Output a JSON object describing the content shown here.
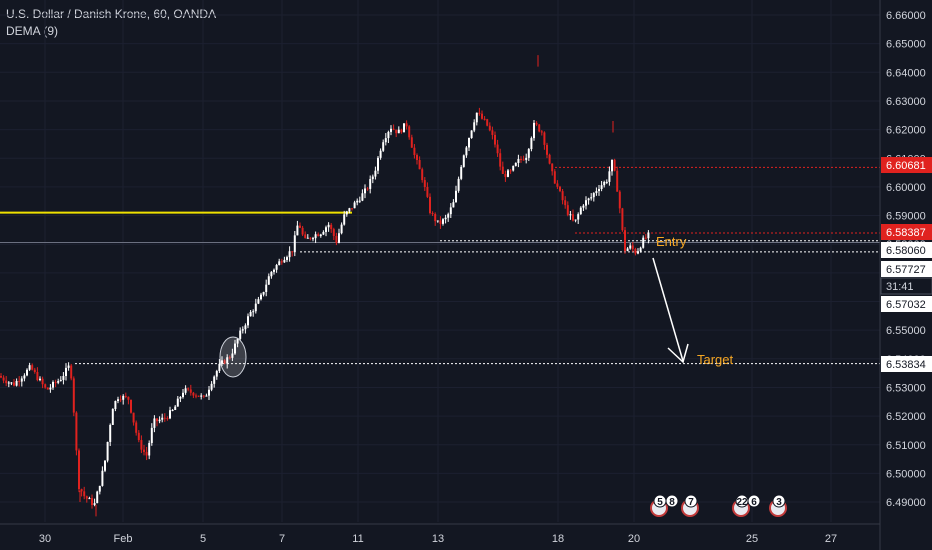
{
  "legend": {
    "title": "U.S. Dollar / Danish Krone, 60, OANDA",
    "indicator": "DEMA (9)"
  },
  "colors": {
    "bg": "#131722",
    "up": "#ffffff",
    "down": "#e0221f",
    "text": "#d1d4dc",
    "yellow": "#f0e100",
    "red": "#e0221f",
    "orange": "#f5a623"
  },
  "chart_data": {
    "type": "candlestick",
    "ylim": [
      6.485,
      6.665
    ],
    "y_ticks": [
      "6.66000",
      "6.65000",
      "6.64000",
      "6.63000",
      "6.62000",
      "6.61000",
      "6.60000",
      "6.59000",
      "6.58000",
      "6.57000",
      "6.56000",
      "6.55000",
      "6.54000",
      "6.53000",
      "6.52000",
      "6.51000",
      "6.50000",
      "6.49000"
    ],
    "x_labels": [
      "30",
      "Feb",
      "5",
      "7",
      "11",
      "13",
      "18",
      "20",
      "25",
      "27"
    ],
    "price_path": [
      [
        0,
        6.534
      ],
      [
        15,
        6.531
      ],
      [
        32,
        6.537
      ],
      [
        48,
        6.529
      ],
      [
        62,
        6.533
      ],
      [
        72,
        6.538
      ],
      [
        76,
        6.519
      ],
      [
        80,
        6.496
      ],
      [
        86,
        6.492
      ],
      [
        96,
        6.489
      ],
      [
        106,
        6.503
      ],
      [
        114,
        6.523
      ],
      [
        120,
        6.527
      ],
      [
        130,
        6.526
      ],
      [
        140,
        6.511
      ],
      [
        148,
        6.506
      ],
      [
        155,
        6.518
      ],
      [
        165,
        6.519
      ],
      [
        175,
        6.522
      ],
      [
        185,
        6.529
      ],
      [
        196,
        6.528
      ],
      [
        206,
        6.526
      ],
      [
        214,
        6.533
      ],
      [
        222,
        6.538
      ],
      [
        232,
        6.541
      ],
      [
        242,
        6.549
      ],
      [
        252,
        6.556
      ],
      [
        262,
        6.561
      ],
      [
        272,
        6.57
      ],
      [
        284,
        6.575
      ],
      [
        294,
        6.578
      ],
      [
        300,
        6.588
      ],
      [
        306,
        6.581
      ],
      [
        314,
        6.583
      ],
      [
        322,
        6.584
      ],
      [
        330,
        6.587
      ],
      [
        338,
        6.581
      ],
      [
        346,
        6.59
      ],
      [
        356,
        6.594
      ],
      [
        368,
        6.599
      ],
      [
        376,
        6.605
      ],
      [
        384,
        6.616
      ],
      [
        392,
        6.621
      ],
      [
        400,
        6.619
      ],
      [
        408,
        6.622
      ],
      [
        416,
        6.611
      ],
      [
        424,
        6.603
      ],
      [
        432,
        6.591
      ],
      [
        440,
        6.587
      ],
      [
        448,
        6.589
      ],
      [
        456,
        6.595
      ],
      [
        464,
        6.61
      ],
      [
        472,
        6.619
      ],
      [
        478,
        6.626
      ],
      [
        488,
        6.622
      ],
      [
        496,
        6.616
      ],
      [
        504,
        6.604
      ],
      [
        512,
        6.605
      ],
      [
        520,
        6.609
      ],
      [
        528,
        6.611
      ],
      [
        536,
        6.622
      ],
      [
        544,
        6.619
      ],
      [
        552,
        6.606
      ],
      [
        560,
        6.599
      ],
      [
        568,
        6.592
      ],
      [
        576,
        6.587
      ],
      [
        584,
        6.594
      ],
      [
        592,
        6.596
      ],
      [
        600,
        6.6
      ],
      [
        608,
        6.602
      ],
      [
        614,
        6.609
      ],
      [
        620,
        6.597
      ],
      [
        626,
        6.578
      ],
      [
        632,
        6.579
      ],
      [
        638,
        6.577
      ],
      [
        644,
        6.581
      ],
      [
        650,
        6.583
      ]
    ],
    "levels": [
      {
        "price": 6.591,
        "from": "left",
        "to": "Feb 11",
        "color": "yellow"
      },
      {
        "price": 6.6068,
        "from": "Feb 18",
        "to": "axis",
        "color": "red",
        "dashed": true
      },
      {
        "price": 6.5839,
        "from": "Feb 19",
        "to": "axis",
        "color": "red",
        "dashed": true
      },
      {
        "price": 6.5812,
        "from": "Feb 13",
        "to": "axis",
        "color": "white",
        "dashed": true
      },
      {
        "price": 6.5806,
        "from": "left",
        "to": "axis",
        "color": "grey"
      },
      {
        "price": 6.5773,
        "from": "Feb 7",
        "to": "axis",
        "color": "white",
        "dashed": true
      },
      {
        "price": 6.5383,
        "from": "Jan 31",
        "to": "axis",
        "color": "white",
        "dashed": true
      }
    ],
    "price_tags": [
      {
        "value": "6.60681",
        "style": "red"
      },
      {
        "value": "6.58387",
        "style": "red"
      },
      {
        "value": "6.58060",
        "style": "white"
      },
      {
        "value": "6.57727",
        "style": "white"
      },
      {
        "value": "31:41",
        "style": "dark"
      },
      {
        "value": "6.57032",
        "style": "white"
      },
      {
        "value": "6.53834",
        "style": "white"
      }
    ],
    "annotations": {
      "entry": "Entry",
      "target": "Target"
    },
    "badges": [
      "5",
      "8",
      "7",
      "22",
      "6",
      "3"
    ]
  }
}
